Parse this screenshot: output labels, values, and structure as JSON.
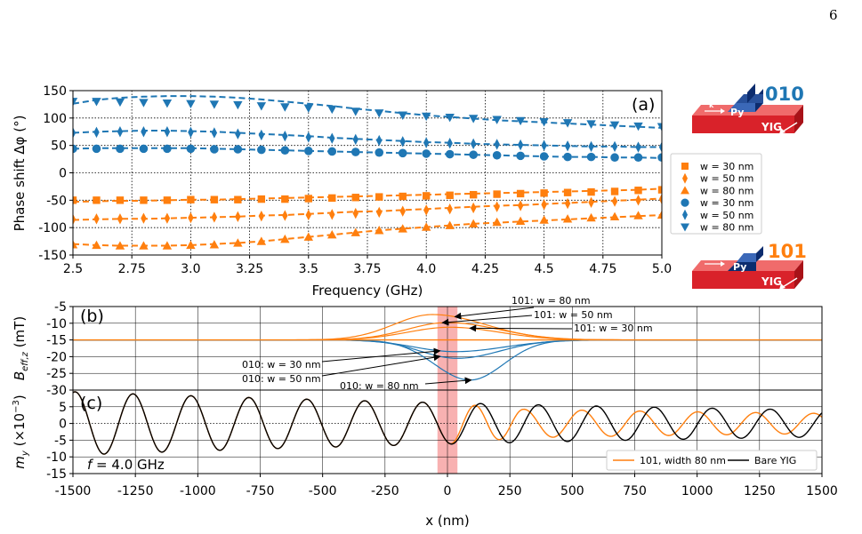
{
  "page_number": "6",
  "colors": {
    "orange": "#ff7f0e",
    "blue": "#1f77b4",
    "highlight": "#f7a8a8",
    "yig": "#d9222a",
    "py": "#0c2c6e",
    "py_top": "#3b68b8",
    "label_010": "#1f77b4",
    "label_101": "#ff7f0e"
  },
  "chart_data": [
    {
      "panel": "(a)",
      "type": "scatter",
      "xlabel": "Frequency (GHz)",
      "ylabel": "Phase shift Δφ (°)",
      "xlim": [
        2.5,
        5.0
      ],
      "ylim": [
        -150,
        150
      ],
      "xticks": [
        "2.5",
        "2.75",
        "3.0",
        "3.25",
        "3.5",
        "3.75",
        "4.0",
        "4.25",
        "4.5",
        "4.75",
        "5.0"
      ],
      "yticks": [
        "150",
        "100",
        "50",
        "0",
        "-50",
        "-100",
        "-150"
      ],
      "grid": "dotted",
      "legend_position": "right",
      "x": [
        2.5,
        2.6,
        2.7,
        2.8,
        2.9,
        3.0,
        3.1,
        3.2,
        3.3,
        3.4,
        3.5,
        3.6,
        3.7,
        3.8,
        3.9,
        4.0,
        4.1,
        4.2,
        4.3,
        4.4,
        4.5,
        4.6,
        4.7,
        4.8,
        4.9,
        5.0
      ],
      "series": [
        {
          "name": "w = 30 nm",
          "marker": "square",
          "color": "orange",
          "values": [
            -50,
            -50,
            -50,
            -50,
            -50,
            -49,
            -49,
            -49,
            -48,
            -48,
            -47,
            -46,
            -45,
            -44,
            -43,
            -42,
            -41,
            -40,
            -39,
            -38,
            -37,
            -36,
            -35,
            -34,
            -32,
            -31
          ]
        },
        {
          "name": "w = 50 nm",
          "marker": "diamond",
          "color": "orange",
          "values": [
            -85,
            -84,
            -84,
            -83,
            -83,
            -82,
            -81,
            -80,
            -79,
            -78,
            -77,
            -76,
            -74,
            -72,
            -70,
            -68,
            -66,
            -64,
            -62,
            -60,
            -58,
            -56,
            -54,
            -52,
            -50,
            -48
          ]
        },
        {
          "name": "w = 80 nm",
          "marker": "triangle-up",
          "color": "orange",
          "values": [
            -131,
            -132,
            -133,
            -133,
            -133,
            -132,
            -131,
            -128,
            -125,
            -121,
            -117,
            -113,
            -109,
            -105,
            -102,
            -99,
            -96,
            -93,
            -90,
            -88,
            -86,
            -84,
            -82,
            -80,
            -78,
            -77
          ]
        },
        {
          "name": "w = 30 nm",
          "marker": "circle",
          "color": "blue",
          "values": [
            44,
            44,
            44,
            44,
            44,
            44,
            43,
            43,
            42,
            41,
            40,
            39,
            38,
            37,
            36,
            35,
            34,
            33,
            32,
            31,
            30,
            29,
            29,
            28,
            28,
            28
          ]
        },
        {
          "name": "w = 50 nm",
          "marker": "diamond",
          "color": "blue",
          "values": [
            73,
            74,
            75,
            75,
            75,
            74,
            73,
            71,
            69,
            67,
            65,
            63,
            61,
            59,
            57,
            55,
            54,
            53,
            52,
            51,
            50,
            49,
            48,
            48,
            47,
            47
          ]
        },
        {
          "name": "w = 80 nm",
          "marker": "triangle-down",
          "color": "blue",
          "values": [
            130,
            130,
            129,
            128,
            127,
            126,
            125,
            124,
            122,
            120,
            118,
            116,
            112,
            109,
            105,
            103,
            101,
            99,
            97,
            95,
            93,
            91,
            89,
            87,
            85,
            84
          ]
        }
      ],
      "fits": [
        {
          "color": "orange",
          "values": [
            -53,
            -52,
            -51,
            -51,
            -50,
            -49,
            -49,
            -48,
            -47,
            -46,
            -45,
            -44,
            -43,
            -42,
            -41,
            -40,
            -39,
            -38,
            -37,
            -36,
            -35,
            -34,
            -33,
            -32,
            -31,
            -29
          ]
        },
        {
          "color": "orange",
          "values": [
            -86,
            -85,
            -84,
            -84,
            -83,
            -82,
            -81,
            -80,
            -78,
            -77,
            -75,
            -73,
            -71,
            -70,
            -68,
            -66,
            -64,
            -62,
            -60,
            -59,
            -57,
            -55,
            -53,
            -51,
            -49,
            -47
          ]
        },
        {
          "color": "orange",
          "values": [
            -130,
            -132,
            -133,
            -133,
            -133,
            -132,
            -130,
            -128,
            -125,
            -121,
            -117,
            -113,
            -109,
            -105,
            -102,
            -99,
            -96,
            -93,
            -91,
            -89,
            -87,
            -85,
            -83,
            -81,
            -79,
            -77
          ]
        },
        {
          "color": "blue",
          "values": [
            44,
            45,
            45,
            45,
            45,
            45,
            44,
            43,
            42,
            41,
            40,
            39,
            38,
            37,
            36,
            35,
            34,
            33,
            32,
            31,
            30,
            29,
            29,
            28,
            28,
            27
          ]
        },
        {
          "color": "blue",
          "values": [
            73,
            75,
            76,
            77,
            77,
            76,
            75,
            73,
            71,
            69,
            67,
            64,
            62,
            60,
            58,
            56,
            55,
            53,
            52,
            51,
            50,
            49,
            48,
            48,
            47,
            47
          ]
        },
        {
          "color": "blue",
          "values": [
            126,
            133,
            137,
            139,
            140,
            140,
            139,
            137,
            134,
            130,
            126,
            122,
            117,
            113,
            109,
            105,
            102,
            99,
            96,
            94,
            92,
            90,
            88,
            86,
            84,
            82
          ]
        }
      ],
      "panel_label": "(a)"
    },
    {
      "panel": "(b)",
      "type": "line",
      "ylabel": "B_eff,z (mT)",
      "ylabel_main": "B",
      "ylabel_sub": "eff,z",
      "ylabel_unit": " (mT)",
      "xlim": [
        -1500,
        1500
      ],
      "ylim": [
        -30,
        -5
      ],
      "yticks": [
        "-5",
        "-10",
        "-15",
        "-20",
        "-25",
        "-30"
      ],
      "grid": "solid",
      "baseline": -15,
      "curves": [
        {
          "label": "101: w = 80 nm",
          "color": "orange",
          "peak": 7.6,
          "peak_x": -60,
          "width_left": 220,
          "width_right": 300
        },
        {
          "label": "101: w = 50 nm",
          "color": "orange",
          "peak": 5.2,
          "peak_x": 0,
          "width_left": 230,
          "width_right": 290
        },
        {
          "label": "101: w = 30 nm",
          "color": "orange",
          "peak": 3.8,
          "peak_x": 10,
          "width_left": 240,
          "width_right": 280
        },
        {
          "label": "010: w = 30 nm",
          "color": "blue",
          "peak": -3.5,
          "peak_x": 30,
          "width_left": 230,
          "width_right": 280
        },
        {
          "label": "010: w = 50 nm",
          "color": "blue",
          "peak": -5.5,
          "peak_x": 40,
          "width_left": 210,
          "width_right": 240
        },
        {
          "label": "010: w = 80 nm",
          "color": "blue",
          "peak": -12.0,
          "peak_x": 90,
          "width_left": 200,
          "width_right": 190
        }
      ],
      "panel_label": "(b)"
    },
    {
      "panel": "(c)",
      "type": "line",
      "xlabel": "x (nm)",
      "ylabel": "m_y (×10^-3)",
      "ylabel_main": "m",
      "ylabel_sub": "y",
      "ylabel_mid": " (×10",
      "ylabel_sup": "−3",
      "ylabel_end": ")",
      "xlim": [
        -1500,
        1500
      ],
      "ylim": [
        -15,
        10
      ],
      "xticks": [
        "-1500",
        "-1250",
        "-1000",
        "-750",
        "-500",
        "-250",
        "0",
        "250",
        "500",
        "750",
        "1000",
        "1250",
        "1500"
      ],
      "yticks": [
        "5",
        "0",
        "-5",
        "-10",
        "-15"
      ],
      "grid": "solid",
      "annotation": "f = 4.0 GHz",
      "annotation_f": "f",
      "annotation_rest": " = 4.0 GHz",
      "legend_position": "lower-right",
      "wave": {
        "amplitude": 9.5,
        "wavelength": 232,
        "decay_length": 3500,
        "phase_deg": 154
      },
      "series": [
        {
          "name": "101, width 80 nm",
          "color": "orange",
          "extra_phase_deg": 90,
          "amp_ratio_after": 0.75
        },
        {
          "name": "Bare YIG",
          "color": "black",
          "extra_phase_deg": 0,
          "amp_ratio_after": 1.0
        }
      ],
      "panel_label": "(c)"
    }
  ],
  "highlight_region": {
    "x_start": -40,
    "x_end": 40
  },
  "insets": {
    "top": {
      "label": "010",
      "py": "Py",
      "yig": "YIG",
      "k": "k"
    },
    "bottom": {
      "label": "101",
      "py": "Py",
      "yig": "YIG",
      "k": "k"
    }
  }
}
